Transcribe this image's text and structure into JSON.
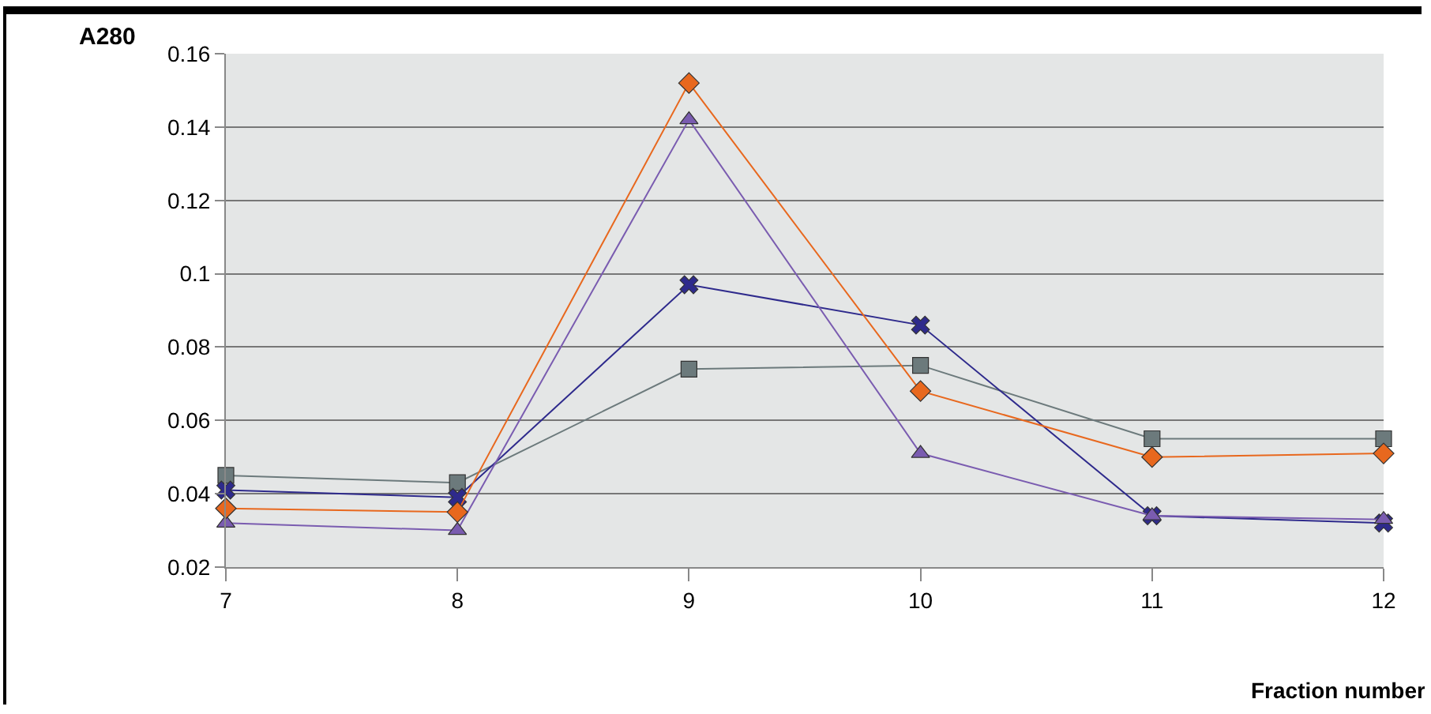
{
  "chart_data": {
    "type": "line",
    "xlabel": "Fraction number",
    "ylabel": "A280",
    "x": [
      7,
      8,
      9,
      10,
      11,
      12
    ],
    "series": [
      {
        "color": "#e8681e",
        "marker": "diamond",
        "values": [
          0.036,
          0.035,
          0.152,
          0.068,
          0.05,
          0.051
        ]
      },
      {
        "color": "#7a5cb0",
        "marker": "triangle",
        "values": [
          0.032,
          0.03,
          0.142,
          0.051,
          0.034,
          0.033
        ]
      },
      {
        "color": "#2e2a8c",
        "marker": "cross",
        "values": [
          0.041,
          0.039,
          0.097,
          0.086,
          0.034,
          0.032
        ]
      },
      {
        "color": "#6c7a7c",
        "marker": "square",
        "values": [
          0.045,
          0.043,
          0.074,
          0.075,
          0.055,
          0.055
        ]
      }
    ],
    "xlim": [
      7,
      12
    ],
    "xticks": [
      7,
      8,
      9,
      10,
      11,
      12
    ],
    "ylim": [
      0.02,
      0.16
    ],
    "yticks": [
      0.02,
      0.04,
      0.06,
      0.08,
      0.1,
      0.12,
      0.14,
      0.16
    ],
    "grid": "y",
    "legend": false
  }
}
